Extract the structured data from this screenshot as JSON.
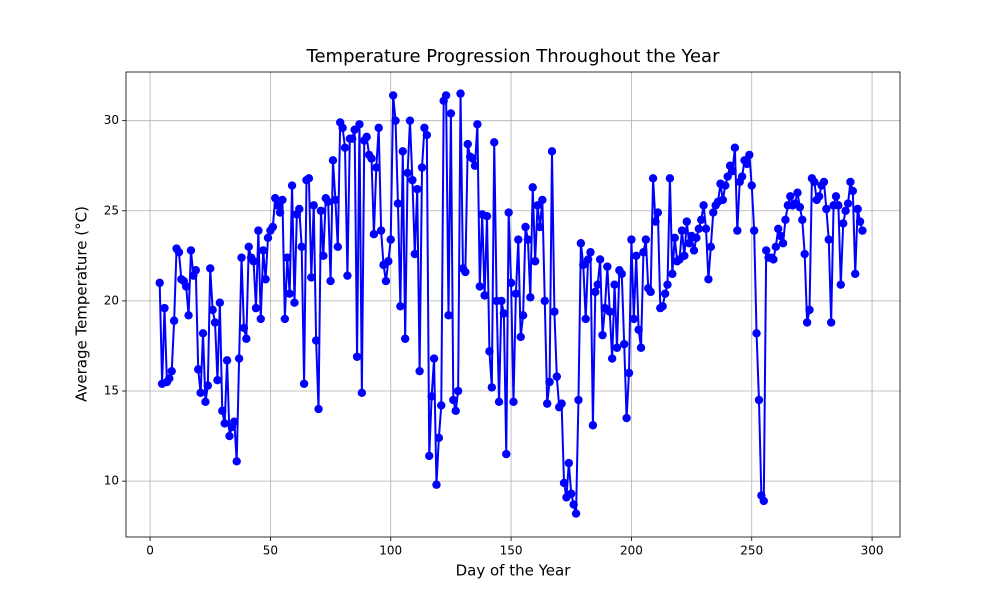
{
  "chart_data": {
    "type": "line",
    "title": "Temperature Progression Throughout the Year",
    "x_label": "Day of the Year",
    "y_label": "Average Temperature (°C)",
    "x": [
      4,
      5,
      6,
      7,
      8,
      9,
      10,
      11,
      12,
      13,
      14,
      15,
      16,
      17,
      18,
      19,
      20,
      21,
      22,
      23,
      24,
      25,
      26,
      27,
      28,
      29,
      30,
      31,
      32,
      33,
      34,
      35,
      36,
      37,
      38,
      39,
      40,
      41,
      42,
      43,
      44,
      45,
      46,
      47,
      48,
      49,
      50,
      51,
      52,
      53,
      54,
      55,
      56,
      57,
      58,
      59,
      60,
      61,
      62,
      63,
      64,
      65,
      66,
      67,
      68,
      69,
      70,
      71,
      72,
      73,
      74,
      75,
      76,
      77,
      78,
      79,
      80,
      81,
      82,
      83,
      84,
      85,
      86,
      87,
      88,
      89,
      90,
      91,
      92,
      93,
      94,
      95,
      96,
      97,
      98,
      99,
      100,
      101,
      102,
      103,
      104,
      105,
      106,
      107,
      108,
      109,
      110,
      111,
      112,
      113,
      114,
      115,
      116,
      117,
      118,
      119,
      120,
      121,
      122,
      123,
      124,
      125,
      126,
      127,
      128,
      129,
      130,
      131,
      132,
      133,
      134,
      135,
      136,
      137,
      138,
      139,
      140,
      141,
      142,
      143,
      144,
      145,
      146,
      147,
      148,
      149,
      150,
      151,
      152,
      153,
      154,
      155,
      156,
      157,
      158,
      159,
      160,
      161,
      162,
      163,
      164,
      165,
      166,
      167,
      168,
      169,
      170,
      171,
      172,
      173,
      174,
      175,
      176,
      177,
      178,
      179,
      180,
      181,
      182,
      183,
      184,
      185,
      186,
      187,
      188,
      189,
      190,
      191,
      192,
      193,
      194,
      195,
      196,
      197,
      198,
      199,
      200,
      201,
      202,
      203,
      204,
      205,
      206,
      207,
      208,
      209,
      210,
      211,
      212,
      213,
      214,
      215,
      216,
      217,
      218,
      219,
      220,
      221,
      222,
      223,
      224,
      225,
      226,
      227,
      228,
      229,
      230,
      231,
      232,
      233,
      234,
      235,
      236,
      237,
      238,
      239,
      240,
      241,
      242,
      243,
      244,
      245,
      246,
      247,
      248,
      249,
      250,
      251,
      252,
      253,
      254,
      255,
      256,
      257,
      258,
      259,
      260,
      261,
      262,
      263,
      264,
      265,
      266,
      267,
      268,
      269,
      270,
      271,
      272,
      273,
      274,
      275,
      276,
      277,
      278,
      279,
      280,
      281,
      282,
      283,
      284,
      285,
      286,
      287,
      288,
      289,
      290,
      291,
      292,
      293,
      294,
      295,
      296
    ],
    "series": [
      {
        "color": "#0000ff",
        "marker": "circle",
        "values": [
          21.0,
          15.4,
          19.6,
          15.5,
          15.7,
          16.1,
          18.9,
          22.9,
          22.7,
          21.2,
          21.1,
          20.8,
          19.2,
          22.8,
          21.4,
          21.7,
          16.2,
          14.9,
          18.2,
          14.4,
          15.3,
          21.8,
          19.5,
          18.8,
          15.6,
          19.9,
          13.9,
          13.2,
          16.7,
          12.5,
          13.0,
          13.3,
          11.1,
          16.8,
          22.4,
          18.5,
          17.9,
          23.0,
          22.4,
          22.2,
          19.6,
          23.9,
          19.0,
          22.8,
          21.2,
          23.5,
          23.9,
          24.1,
          25.7,
          25.3,
          24.9,
          25.6,
          19.0,
          22.4,
          20.4,
          26.4,
          19.9,
          24.8,
          25.1,
          23.0,
          15.4,
          26.7,
          26.8,
          21.3,
          25.3,
          17.8,
          14.0,
          25.0,
          22.5,
          25.7,
          25.5,
          21.1,
          27.8,
          25.6,
          23.0,
          29.9,
          29.6,
          28.5,
          21.4,
          29.0,
          29.0,
          29.5,
          16.9,
          29.8,
          14.9,
          28.9,
          29.1,
          28.1,
          27.9,
          23.7,
          27.4,
          29.6,
          23.9,
          22.0,
          21.1,
          22.2,
          23.4,
          31.4,
          30.0,
          25.4,
          19.7,
          28.3,
          17.9,
          27.1,
          30.0,
          26.7,
          22.6,
          26.2,
          16.1,
          27.4,
          29.6,
          29.2,
          11.4,
          14.7,
          16.8,
          9.8,
          12.4,
          14.2,
          31.1,
          31.4,
          19.2,
          30.4,
          14.5,
          13.9,
          15.0,
          31.5,
          21.8,
          21.6,
          28.7,
          28.0,
          27.9,
          27.5,
          29.8,
          20.8,
          24.8,
          20.3,
          24.7,
          17.2,
          15.2,
          28.8,
          20.0,
          14.4,
          20.0,
          19.3,
          11.5,
          24.9,
          21.0,
          14.4,
          20.4,
          23.4,
          18.0,
          19.2,
          24.1,
          23.4,
          20.2,
          26.3,
          22.2,
          25.3,
          24.1,
          25.6,
          20.0,
          14.3,
          15.5,
          28.3,
          19.4,
          15.8,
          14.1,
          14.3,
          9.9,
          9.1,
          11.0,
          9.3,
          8.7,
          8.2,
          14.5,
          23.2,
          22.0,
          19.0,
          22.3,
          22.7,
          13.1,
          20.5,
          20.9,
          22.3,
          18.1,
          19.6,
          21.9,
          19.4,
          16.8,
          20.9,
          17.4,
          21.7,
          21.5,
          17.6,
          13.5,
          16.0,
          23.4,
          19.0,
          22.5,
          18.4,
          17.4,
          22.7,
          23.4,
          20.7,
          20.5,
          26.8,
          24.4,
          24.9,
          19.6,
          19.7,
          20.4,
          20.9,
          26.8,
          21.5,
          23.5,
          22.2,
          22.3,
          23.9,
          22.5,
          24.4,
          23.2,
          23.6,
          22.8,
          23.5,
          24.0,
          24.5,
          25.3,
          24.0,
          21.2,
          23.0,
          24.9,
          25.3,
          25.5,
          26.5,
          25.6,
          26.4,
          26.9,
          27.5,
          27.2,
          28.5,
          23.9,
          26.6,
          26.9,
          27.8,
          27.6,
          28.1,
          26.4,
          23.9,
          18.2,
          14.5,
          9.2,
          8.9,
          22.8,
          22.4,
          22.4,
          22.3,
          23.0,
          24.0,
          23.6,
          23.2,
          24.5,
          25.3,
          25.8,
          25.3,
          25.4,
          26.0,
          25.2,
          24.5,
          22.6,
          18.8,
          19.5,
          26.8,
          26.6,
          25.6,
          25.8,
          26.4,
          26.6,
          25.1,
          23.4,
          18.8,
          25.3,
          25.8,
          25.3,
          20.9,
          24.3,
          25.0,
          25.4,
          26.6,
          26.1,
          21.5,
          25.1,
          24.4,
          23.9
        ]
      }
    ],
    "xlim": [
      -10,
      311.6
    ],
    "ylim": [
      6.9,
      32.7
    ],
    "xticks": [
      0,
      50,
      100,
      150,
      200,
      250,
      300
    ],
    "yticks": [
      10,
      15,
      20,
      25,
      30
    ],
    "grid": true
  }
}
